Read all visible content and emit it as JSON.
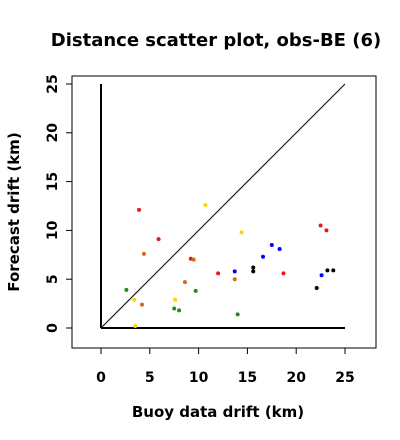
{
  "chart_data": {
    "type": "scatter",
    "title": "Distance scatter plot, obs-BE (6)",
    "xlabel": "Buoy data drift (km)",
    "ylabel": "Forecast drift (km)",
    "xlim": [
      -3,
      26
    ],
    "ylim": [
      -2,
      26
    ],
    "xticks": [
      0,
      5,
      10,
      15,
      20,
      25
    ],
    "yticks": [
      0,
      5,
      10,
      15,
      20,
      25
    ],
    "reference_lines": [
      {
        "name": "identity",
        "from": [
          0,
          0
        ],
        "to": [
          25,
          25
        ]
      },
      {
        "name": "x-axis-line",
        "from": [
          0,
          0
        ],
        "to": [
          25,
          0
        ]
      },
      {
        "name": "y-axis-line",
        "from": [
          0,
          0
        ],
        "to": [
          0,
          25
        ]
      }
    ],
    "grid": false,
    "legend": "none",
    "points": [
      {
        "x": 3.9,
        "y": 12.1,
        "color": "#e41a1c"
      },
      {
        "x": 5.9,
        "y": 9.1,
        "color": "#e41a1c"
      },
      {
        "x": 9.2,
        "y": 7.1,
        "color": "#e41a1c"
      },
      {
        "x": 12.0,
        "y": 5.6,
        "color": "#e41a1c"
      },
      {
        "x": 18.7,
        "y": 5.6,
        "color": "#e41a1c"
      },
      {
        "x": 22.5,
        "y": 10.5,
        "color": "#e41a1c"
      },
      {
        "x": 23.1,
        "y": 10.0,
        "color": "#e41a1c"
      },
      {
        "x": 4.4,
        "y": 7.6,
        "color": "#d2691e"
      },
      {
        "x": 9.5,
        "y": 7.0,
        "color": "#d2691e"
      },
      {
        "x": 8.6,
        "y": 4.7,
        "color": "#d2691e"
      },
      {
        "x": 13.7,
        "y": 5.0,
        "color": "#d2691e"
      },
      {
        "x": 4.2,
        "y": 2.4,
        "color": "#d2691e"
      },
      {
        "x": 10.7,
        "y": 12.6,
        "color": "#ffd700"
      },
      {
        "x": 14.4,
        "y": 9.8,
        "color": "#ffd700"
      },
      {
        "x": 3.4,
        "y": 2.9,
        "color": "#ffd700"
      },
      {
        "x": 7.6,
        "y": 2.9,
        "color": "#ffd700"
      },
      {
        "x": 3.5,
        "y": 0.2,
        "color": "#ffd700"
      },
      {
        "x": 2.6,
        "y": 3.9,
        "color": "#228b22"
      },
      {
        "x": 9.7,
        "y": 3.8,
        "color": "#228b22"
      },
      {
        "x": 7.5,
        "y": 2.0,
        "color": "#228b22"
      },
      {
        "x": 8.0,
        "y": 1.8,
        "color": "#228b22"
      },
      {
        "x": 14.0,
        "y": 1.4,
        "color": "#228b22"
      },
      {
        "x": 17.5,
        "y": 8.5,
        "color": "#0000ff"
      },
      {
        "x": 18.3,
        "y": 8.1,
        "color": "#0000ff"
      },
      {
        "x": 16.6,
        "y": 7.3,
        "color": "#0000ff"
      },
      {
        "x": 13.7,
        "y": 5.8,
        "color": "#0000ff"
      },
      {
        "x": 22.6,
        "y": 5.4,
        "color": "#0000ff"
      },
      {
        "x": 15.6,
        "y": 6.2,
        "color": "#000000"
      },
      {
        "x": 15.6,
        "y": 5.8,
        "color": "#000000"
      },
      {
        "x": 23.2,
        "y": 5.9,
        "color": "#000000"
      },
      {
        "x": 23.8,
        "y": 5.9,
        "color": "#000000"
      },
      {
        "x": 22.1,
        "y": 4.1,
        "color": "#000000"
      }
    ]
  }
}
